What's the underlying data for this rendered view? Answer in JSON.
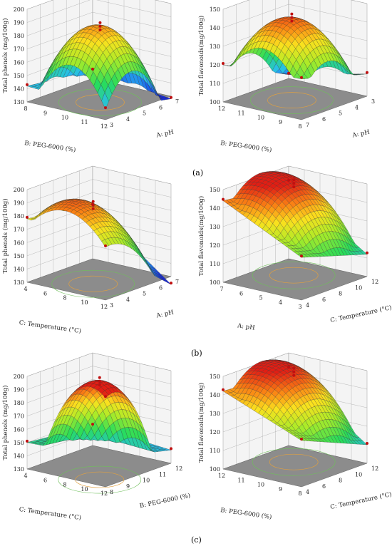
{
  "panel_labels": [
    "(a)",
    "(b)",
    "(c)"
  ],
  "chart_data": [
    {
      "type": "surface3d",
      "row": 0,
      "col": 0,
      "zlabel": "Total phenols (mg/100g)",
      "xlabel": "B: PEG-6000 (%)",
      "ylabel": "A: pH",
      "x_ticks": [
        "8",
        "9",
        "10",
        "11",
        "12"
      ],
      "y_ticks": [
        "7",
        "6",
        "5",
        "4",
        "3"
      ],
      "z_ticks": [
        "130",
        "140",
        "150",
        "160",
        "170",
        "180",
        "190",
        "200"
      ],
      "zlim": [
        130,
        200
      ],
      "surface": {
        "corners": [
          138,
          128,
          136,
          142
        ],
        "peak": 188,
        "peak_at": [
          0.42,
          0.42
        ]
      }
    },
    {
      "type": "surface3d",
      "row": 0,
      "col": 1,
      "zlabel": "Total flavonoids(mg/100g)",
      "xlabel": "B: PEG-6000 (%)",
      "ylabel": "A: pH",
      "x_ticks": [
        "12",
        "11",
        "10",
        "9",
        "8"
      ],
      "y_ticks": [
        "3",
        "4",
        "5",
        "6",
        "7"
      ],
      "z_ticks": [
        "100",
        "110",
        "120",
        "130",
        "140",
        "150"
      ],
      "zlim": [
        100,
        150
      ],
      "surface": {
        "corners": [
          122,
          112,
          102,
          120
        ],
        "peak": 145,
        "peak_at": [
          0.45,
          0.5
        ]
      }
    },
    {
      "type": "surface3d",
      "row": 1,
      "col": 0,
      "zlabel": "Total phenols (mg/100g)",
      "xlabel": "C: Temperature (°C)",
      "ylabel": "A: pH",
      "x_ticks": [
        "4",
        "6",
        "8",
        "10",
        "12"
      ],
      "y_ticks": [
        "7",
        "6",
        "5",
        "4",
        "3"
      ],
      "z_ticks": [
        "130",
        "140",
        "150",
        "160",
        "170",
        "180",
        "190",
        "200"
      ],
      "zlim": [
        130,
        200
      ],
      "surface": {
        "corners": [
          168,
          124,
          170,
          178
        ],
        "peak": 190,
        "peak_at": [
          0.35,
          0.45
        ]
      }
    },
    {
      "type": "surface3d",
      "row": 1,
      "col": 1,
      "zlabel": "Total flavonoids(mg/100g)",
      "xlabel": "A: pH",
      "ylabel": "C: Temperature (°C)",
      "x_ticks": [
        "7",
        "6",
        "5",
        "4",
        "3"
      ],
      "y_ticks": [
        "12",
        "10",
        "8",
        "6",
        "4"
      ],
      "z_ticks": [
        "100",
        "110",
        "120",
        "130",
        "140",
        "150"
      ],
      "zlim": [
        100,
        150
      ],
      "surface": {
        "corners": [
          123,
          112,
          140,
          144
        ],
        "peak": 150,
        "peak_at": [
          0.6,
          0.6
        ]
      }
    },
    {
      "type": "surface3d",
      "row": 2,
      "col": 0,
      "zlabel": "Total phenols (mg/100g)",
      "xlabel": "C: Temperature (°C)",
      "ylabel": "B: PEG-6000 (%)",
      "x_ticks": [
        "4",
        "6",
        "8",
        "10",
        "12"
      ],
      "y_ticks": [
        "12",
        "11",
        "10",
        "9",
        "8"
      ],
      "z_ticks": [
        "130",
        "140",
        "150",
        "160",
        "170",
        "180",
        "190",
        "200"
      ],
      "zlim": [
        130,
        200
      ],
      "surface": {
        "corners": [
          152,
          140,
          145,
          150
        ],
        "peak": 205,
        "peak_at": [
          0.15,
          0.2
        ]
      }
    },
    {
      "type": "surface3d",
      "row": 2,
      "col": 1,
      "zlabel": "Total flavonoids(mg/100g)",
      "xlabel": "B: PEG-6000 (%)",
      "ylabel": "C: Temperature (°C)",
      "x_ticks": [
        "12",
        "11",
        "10",
        "9",
        "8"
      ],
      "y_ticks": [
        "12",
        "10",
        "8",
        "6",
        "4"
      ],
      "z_ticks": [
        "100",
        "110",
        "120",
        "130",
        "140",
        "150"
      ],
      "zlim": [
        100,
        150
      ],
      "surface": {
        "corners": [
          125,
          110,
          140,
          142
        ],
        "peak": 149,
        "peak_at": [
          0.6,
          0.6
        ]
      }
    }
  ]
}
